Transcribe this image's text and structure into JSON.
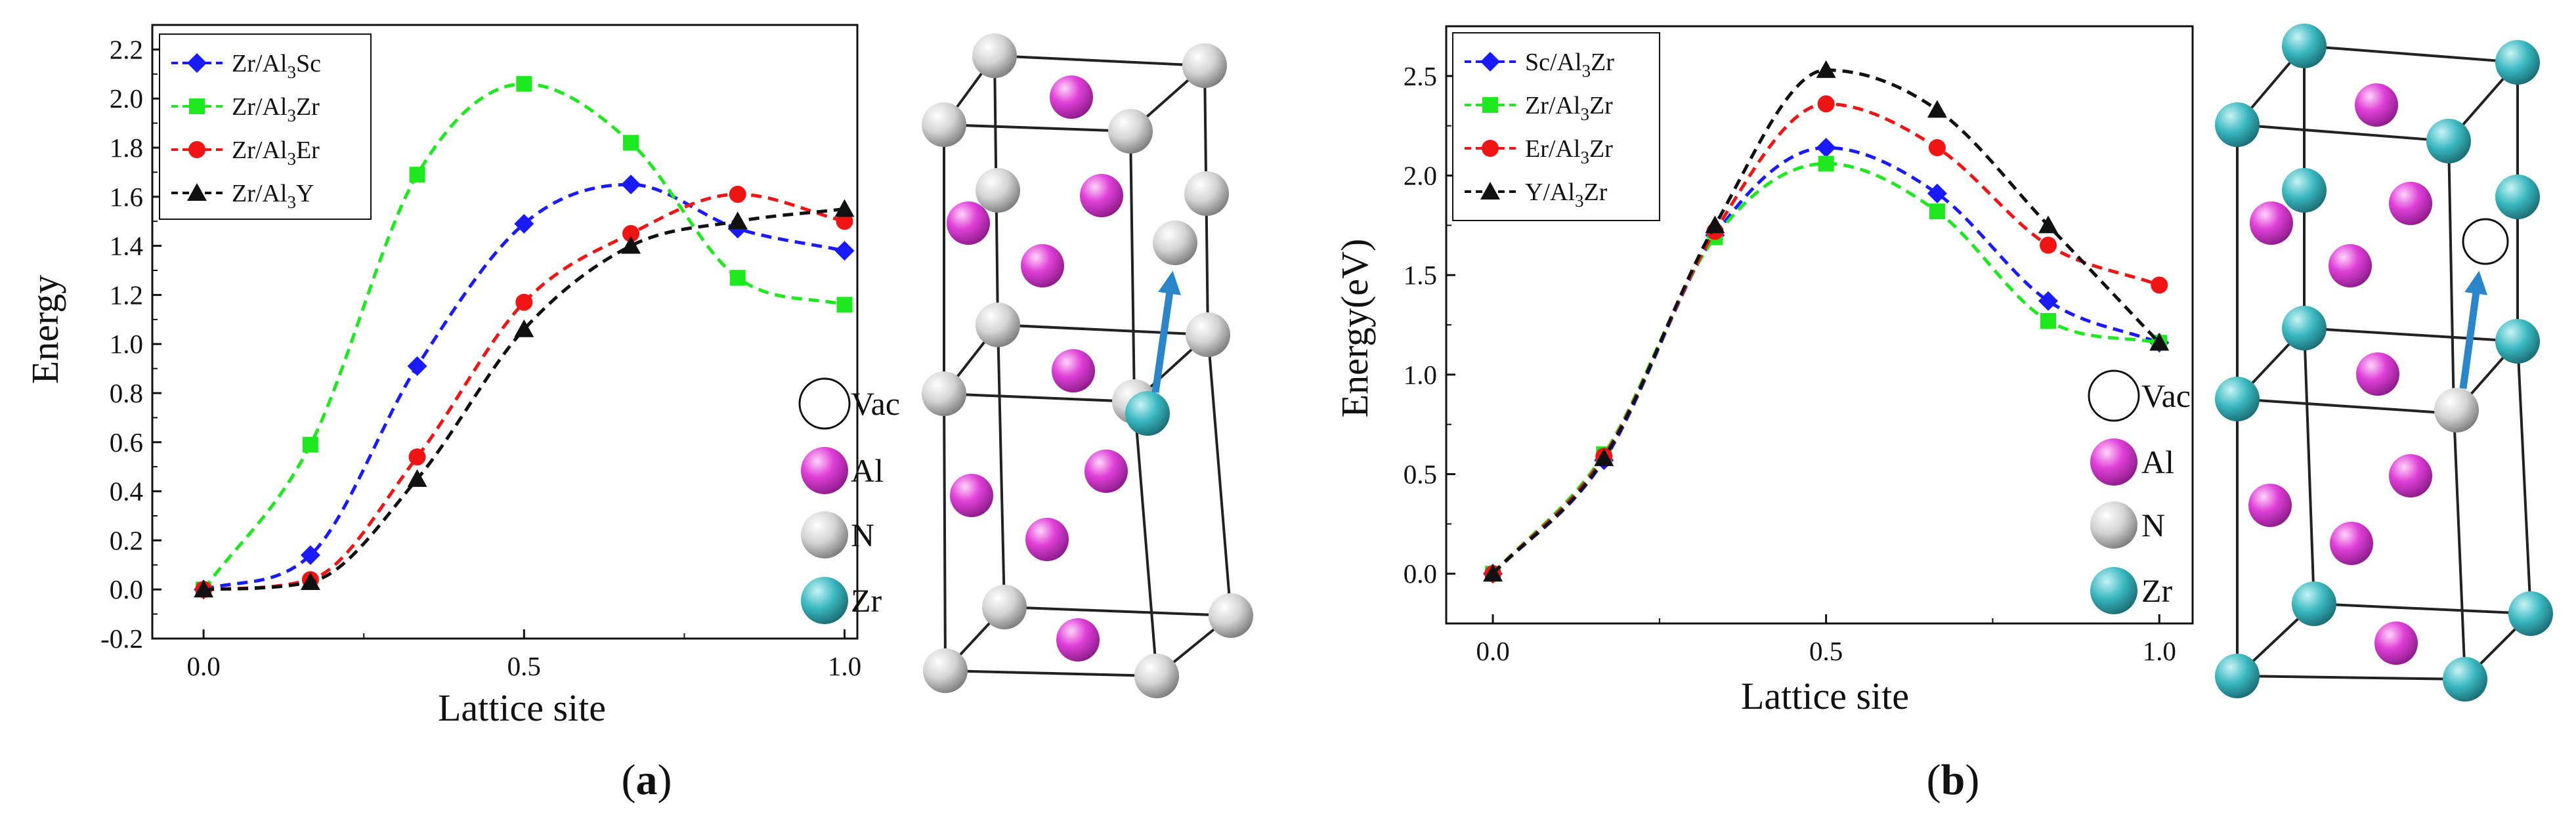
{
  "colors": {
    "blue": "#1a1aff",
    "green": "#1ee81e",
    "red": "#f01414",
    "black": "#111111",
    "pink": "#e040d8",
    "grey": "#d4d4d4",
    "cyan": "#39b8c0",
    "arrow": "#2a86c8"
  },
  "chart_data": [
    {
      "type": "line",
      "xlabel": "Lattice site",
      "ylabel": "Energy",
      "xlim": [
        -0.08,
        1.02
      ],
      "ylim": [
        -0.2,
        2.3
      ],
      "xticks": [
        0.0,
        0.5,
        1.0
      ],
      "xtick_labels": [
        "0.0",
        "0.5",
        "1.0"
      ],
      "yticks": [
        -0.2,
        0.0,
        0.2,
        0.4,
        0.6,
        0.8,
        1.0,
        1.2,
        1.4,
        1.6,
        1.8,
        2.0,
        2.2
      ],
      "ytick_labels": [
        "-0.2",
        "0.0",
        "0.2",
        "0.4",
        "0.6",
        "0.8",
        "1.0",
        "1.2",
        "1.4",
        "1.6",
        "1.8",
        "2.0",
        "2.2"
      ],
      "legend_position": "top-left",
      "x": [
        0,
        0.1667,
        0.3333,
        0.5,
        0.6667,
        0.8333,
        1.0
      ],
      "series": [
        {
          "name": "Zr/Al3Sc",
          "legend": [
            "Zr/Al",
            "3",
            "Sc"
          ],
          "color": "blue",
          "marker": "diamond",
          "values": [
            0.0,
            0.14,
            0.91,
            1.49,
            1.65,
            1.47,
            1.38
          ]
        },
        {
          "name": "Zr/Al3Zr",
          "legend": [
            "Zr/Al",
            "3",
            "Zr"
          ],
          "color": "green",
          "marker": "square",
          "values": [
            0.0,
            0.59,
            1.69,
            2.06,
            1.82,
            1.27,
            1.16
          ]
        },
        {
          "name": "Zr/Al3Er",
          "legend": [
            "Zr/Al",
            "3",
            "Er"
          ],
          "color": "red",
          "marker": "circle",
          "values": [
            0.0,
            0.04,
            0.54,
            1.17,
            1.45,
            1.61,
            1.5
          ]
        },
        {
          "name": "Zr/Al3Y",
          "legend": [
            "Zr/Al",
            "3",
            "Y"
          ],
          "color": "black",
          "marker": "triangle",
          "values": [
            0.0,
            0.03,
            0.45,
            1.06,
            1.4,
            1.5,
            1.55
          ]
        }
      ]
    },
    {
      "type": "line",
      "xlabel": "Lattice site",
      "ylabel": "Energy(eV)",
      "xlim": [
        -0.07,
        1.05
      ],
      "ylim": [
        -0.25,
        2.75
      ],
      "xticks": [
        0.0,
        0.5,
        1.0
      ],
      "xtick_labels": [
        "0.0",
        "0.5",
        "1.0"
      ],
      "yticks": [
        0.0,
        0.5,
        1.0,
        1.5,
        2.0,
        2.5
      ],
      "ytick_labels": [
        "0.0",
        "0.5",
        "1.0",
        "1.5",
        "2.0",
        "2.5"
      ],
      "legend_position": "top-left",
      "x": [
        0,
        0.1667,
        0.3333,
        0.5,
        0.6667,
        0.8333,
        1.0
      ],
      "series": [
        {
          "name": "Sc/Al3Zr",
          "legend": [
            "Sc/Al",
            "3",
            "Zr"
          ],
          "color": "blue",
          "marker": "diamond",
          "values": [
            0.0,
            0.57,
            1.7,
            2.14,
            1.91,
            1.37,
            1.16
          ]
        },
        {
          "name": "Zr/Al3Zr",
          "legend": [
            "Zr/Al",
            "3",
            "Zr"
          ],
          "color": "green",
          "marker": "square",
          "values": [
            0.0,
            0.6,
            1.69,
            2.06,
            1.82,
            1.27,
            1.16
          ]
        },
        {
          "name": "Er/Al3Zr",
          "legend": [
            "Er/Al",
            "3",
            "Zr"
          ],
          "color": "red",
          "marker": "circle",
          "values": [
            0.0,
            0.59,
            1.72,
            2.36,
            2.14,
            1.65,
            1.45
          ]
        },
        {
          "name": "Y/Al3Zr",
          "legend": [
            "Y/Al",
            "3",
            "Zr"
          ],
          "color": "black",
          "marker": "triangle",
          "values": [
            0.0,
            0.58,
            1.75,
            2.53,
            2.33,
            1.75,
            1.16
          ]
        }
      ]
    }
  ],
  "atom_legend": [
    "Vac",
    "Al",
    "N",
    "Zr"
  ],
  "panel_labels": [
    "(a)",
    "(b)"
  ],
  "panel_label_parts": [
    [
      "(",
      "a",
      ")"
    ],
    [
      "(",
      "b",
      ")"
    ]
  ]
}
